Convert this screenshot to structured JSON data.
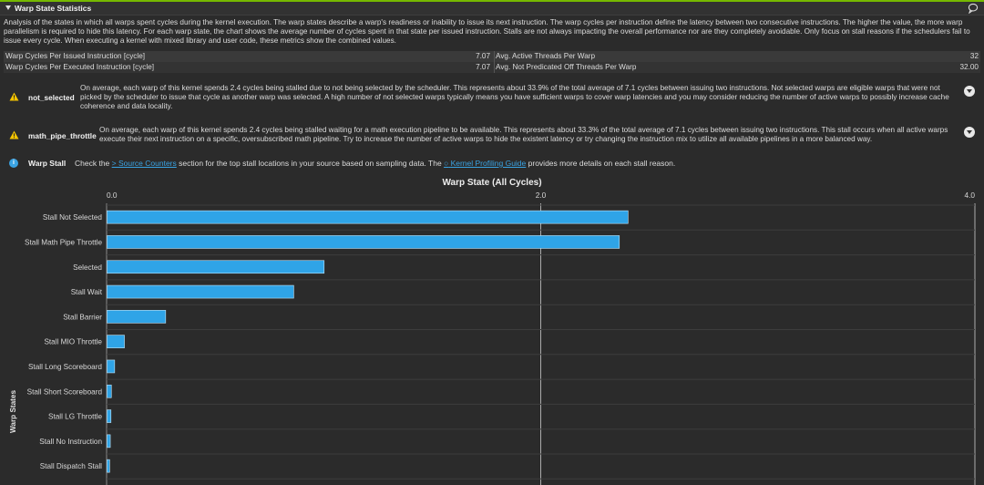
{
  "section": {
    "title": "Warp State Statistics",
    "description": "Analysis of the states in which all warps spent cycles during the kernel execution. The warp states describe a warp's readiness or inability to issue its next instruction. The warp cycles per instruction define the latency between two consecutive instructions. The higher the value, the more warp parallelism is required to hide this latency. For each warp state, the chart shows the average number of cycles spent in that state per issued instruction. Stalls are not always impacting the overall performance nor are they completely avoidable. Only focus on stall reasons if the schedulers fail to issue every cycle. When executing a kernel with mixed library and user code, these metrics show the combined values."
  },
  "metrics": [
    {
      "label": "Warp Cycles Per Issued Instruction [cycle]",
      "value": "7.07",
      "label2": "Avg. Active Threads Per Warp",
      "value2": "32"
    },
    {
      "label": "Warp Cycles Per Executed Instruction [cycle]",
      "value": "7.07",
      "label2": "Avg. Not Predicated Off Threads Per Warp",
      "value2": "32.00"
    }
  ],
  "issues": [
    {
      "name": "not_selected",
      "text": "On average, each warp of this kernel spends 2.4 cycles being stalled due to not being selected by the scheduler. This represents about 33.9% of the total average of 7.1 cycles between issuing two instructions. Not selected warps are eligible warps that were not picked by the scheduler to issue that cycle as another warp was selected. A high number of not selected warps typically means you have sufficient warps to cover warp latencies and you may consider reducing the number of active warps to possibly increase cache coherence and data locality."
    },
    {
      "name": "math_pipe_throttle",
      "text": "On average, each warp of this kernel spends 2.4 cycles being stalled waiting for a math execution pipeline to be available. This represents about 33.3% of the total average of 7.1 cycles between issuing two instructions. This stall occurs when all active warps execute their next instruction on a specific, oversubscribed math pipeline. Try to increase the number of active warps to hide the existent latency or try changing the instruction mix to utilize all available pipelines in a more balanced way."
    }
  ],
  "info": {
    "name": "Warp Stall",
    "text_before": "Check the",
    "link1": "> Source Counters",
    "text_middle": "section for the top stall locations in your source based on sampling data. The",
    "link2": "Kernel Profiling Guide",
    "text_after": "provides more details on each stall reason."
  },
  "colors": {
    "accent": "#76b900",
    "bar": "#2fa4e7",
    "warning": "#f5c400",
    "info": "#3aa3e3"
  },
  "icons": {
    "header": "chevron-down-icon",
    "feedback": "chat-bubble-icon",
    "warning": "warning-triangle-icon",
    "info": "info-circle-icon"
  },
  "chart_data": {
    "type": "bar",
    "orientation": "horizontal",
    "title": "Warp State (All Cycles)",
    "ylabel": "Warp States",
    "xlim": [
      0,
      4.0
    ],
    "xticks": [
      "0.0",
      "2.0",
      "4.0"
    ],
    "xtick_values": [
      0,
      2,
      4
    ],
    "grid": true,
    "categories": [
      "Stall Not Selected",
      "Stall Math Pipe Throttle",
      "Selected",
      "Stall Wait",
      "Stall Barrier",
      "Stall MIO Throttle",
      "Stall Long Scoreboard",
      "Stall Short Scoreboard",
      "Stall LG Throttle",
      "Stall No Instruction",
      "Stall Dispatch Stall"
    ],
    "values": [
      2.4,
      2.36,
      1.0,
      0.86,
      0.27,
      0.08,
      0.035,
      0.02,
      0.018,
      0.015,
      0.012
    ]
  }
}
